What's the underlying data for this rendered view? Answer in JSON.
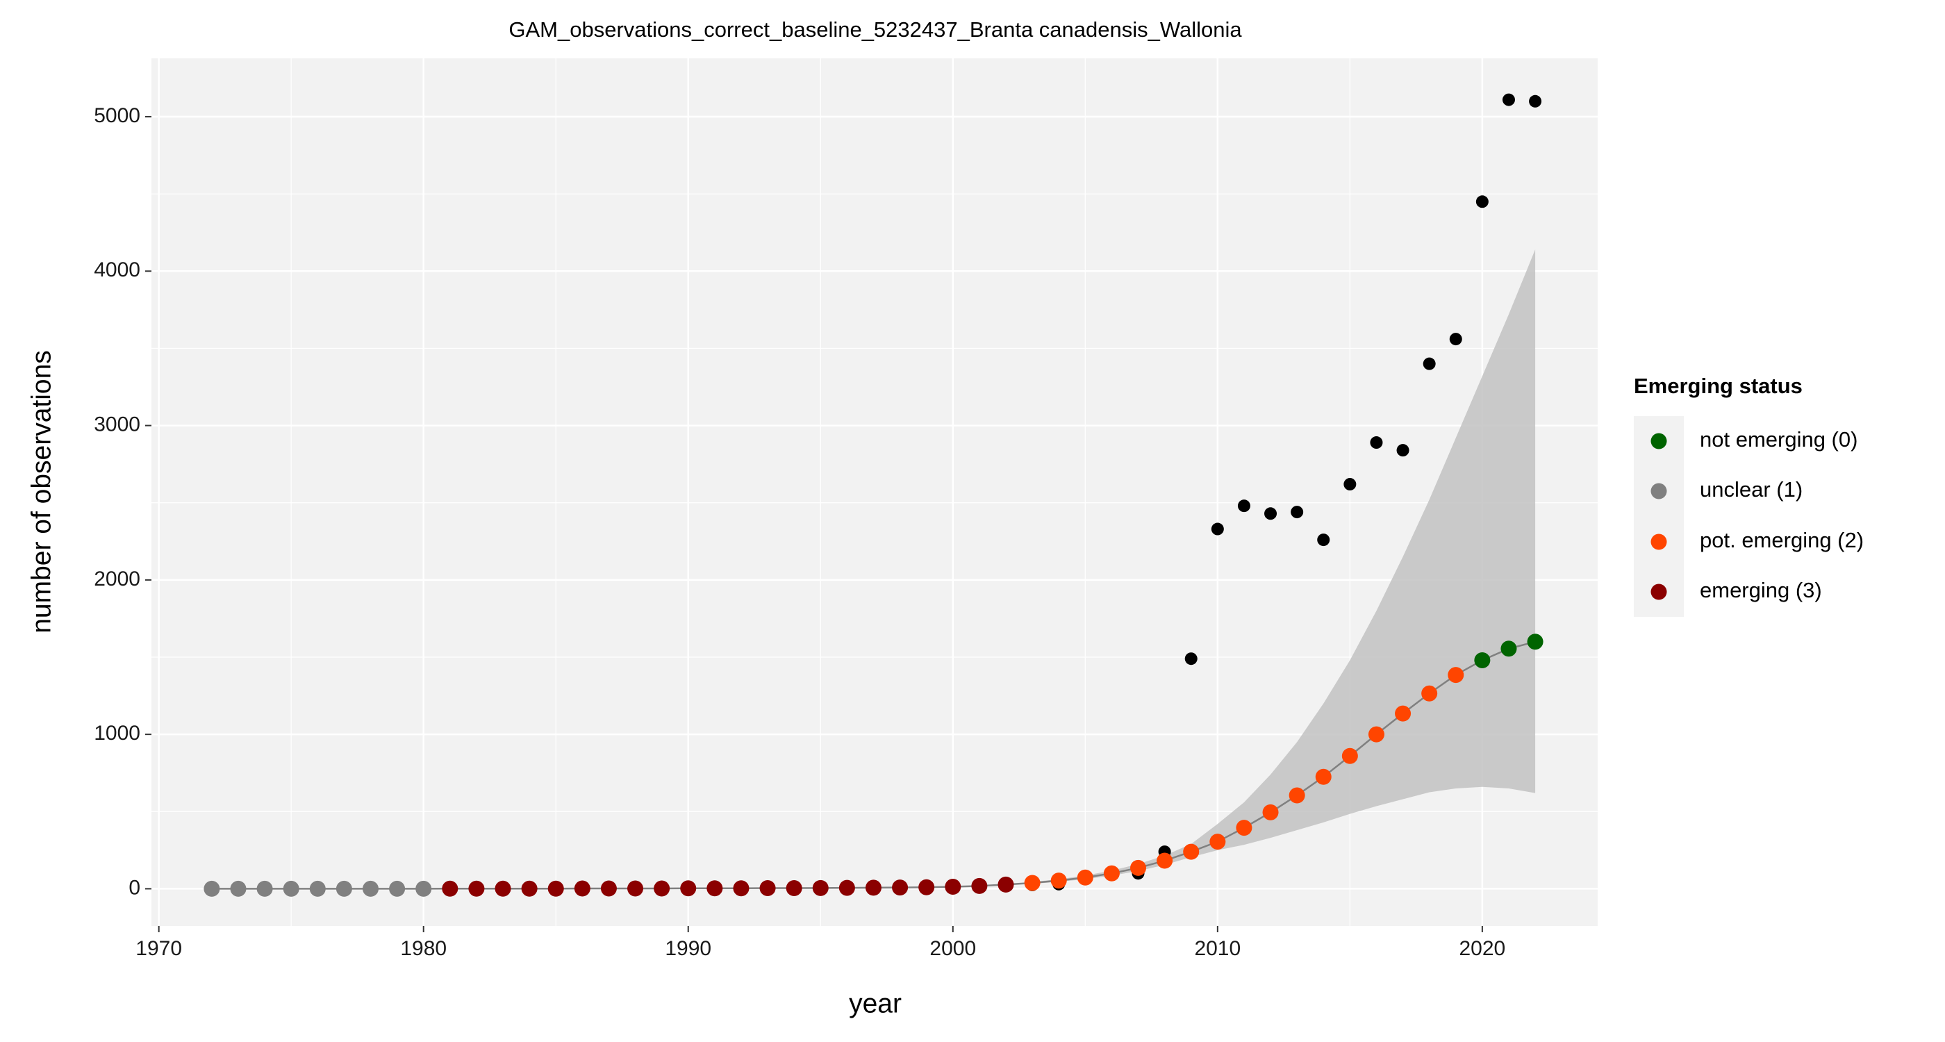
{
  "chart_data": {
    "type": "gam",
    "title": "GAM_observations_correct_baseline_5232437_Branta canadensis_Wallonia",
    "x_label": "year",
    "y_label": "number of observations",
    "x": [
      1972,
      1973,
      1974,
      1975,
      1976,
      1977,
      1978,
      1979,
      1980,
      1981,
      1982,
      1983,
      1984,
      1985,
      1986,
      1987,
      1988,
      1989,
      1990,
      1991,
      1992,
      1993,
      1994,
      1995,
      1996,
      1997,
      1998,
      1999,
      2000,
      2001,
      2002,
      2003,
      2004,
      2005,
      2006,
      2007,
      2008,
      2009,
      2010,
      2011,
      2012,
      2013,
      2014,
      2015,
      2016,
      2017,
      2018,
      2019,
      2020,
      2021,
      2022
    ],
    "observed": [
      0,
      0,
      0,
      0,
      0,
      0,
      0,
      0,
      0,
      0,
      0,
      0,
      0,
      0,
      0,
      0,
      0,
      0,
      0,
      0,
      0,
      0,
      0,
      2,
      4,
      5,
      8,
      12,
      15,
      18,
      25,
      25,
      30,
      70,
      90,
      100,
      240,
      1490,
      2330,
      2480,
      2430,
      2440,
      2260,
      2620,
      2890,
      2840,
      3400,
      3560,
      4450,
      5110,
      5100
    ],
    "fit": [
      0,
      0,
      0,
      0,
      0,
      0,
      0,
      0,
      0,
      1,
      1,
      1,
      1,
      1,
      2,
      2,
      2,
      2,
      3,
      3,
      3,
      4,
      4,
      5,
      6,
      7,
      8,
      10,
      13,
      18,
      27,
      38,
      53,
      73,
      100,
      135,
      182,
      240,
      305,
      395,
      495,
      605,
      725,
      860,
      1000,
      1135,
      1265,
      1385,
      1480,
      1555,
      1600
    ],
    "lower": [
      0,
      0,
      0,
      0,
      0,
      0,
      0,
      0,
      0,
      1,
      1,
      1,
      1,
      1,
      2,
      2,
      2,
      2,
      3,
      3,
      3,
      4,
      4,
      5,
      6,
      7,
      8,
      10,
      13,
      18,
      27,
      32,
      45,
      62,
      85,
      115,
      155,
      205,
      250,
      285,
      330,
      380,
      430,
      485,
      535,
      580,
      625,
      650,
      660,
      650,
      620
    ],
    "upper": [
      0,
      0,
      0,
      0,
      0,
      0,
      0,
      0,
      0,
      1,
      1,
      1,
      1,
      1,
      2,
      2,
      2,
      2,
      3,
      3,
      3,
      4,
      4,
      5,
      6,
      7,
      8,
      10,
      13,
      18,
      27,
      44,
      62,
      86,
      118,
      160,
      215,
      290,
      420,
      560,
      740,
      950,
      1200,
      1480,
      1800,
      2150,
      2520,
      2920,
      3320,
      3720,
      4140
    ],
    "status": [
      1,
      1,
      1,
      1,
      1,
      1,
      1,
      1,
      1,
      3,
      3,
      3,
      3,
      3,
      3,
      3,
      3,
      3,
      3,
      3,
      3,
      3,
      3,
      3,
      3,
      3,
      3,
      3,
      3,
      3,
      3,
      2,
      2,
      2,
      2,
      2,
      2,
      2,
      2,
      2,
      2,
      2,
      2,
      2,
      2,
      2,
      2,
      2,
      0,
      0,
      0
    ],
    "legend": {
      "title": "Emerging status",
      "items": [
        {
          "name": "not emerging (0)",
          "color": "#006400"
        },
        {
          "name": "unclear (1)",
          "color": "#808080"
        },
        {
          "name": "pot. emerging (2)",
          "color": "#ff4500"
        },
        {
          "name": "emerging (3)",
          "color": "#8b0000"
        }
      ]
    },
    "observed_color": "#000000",
    "line_color": "#808080",
    "band_color": "#bebebe",
    "xlim": [
      1969.72,
      2024.36
    ],
    "ylim": [
      -241,
      5378
    ],
    "xticks": [
      1970,
      1980,
      1990,
      2000,
      2010,
      2020
    ],
    "yticks": [
      0,
      1000,
      2000,
      3000,
      4000,
      5000
    ],
    "grid": true
  }
}
